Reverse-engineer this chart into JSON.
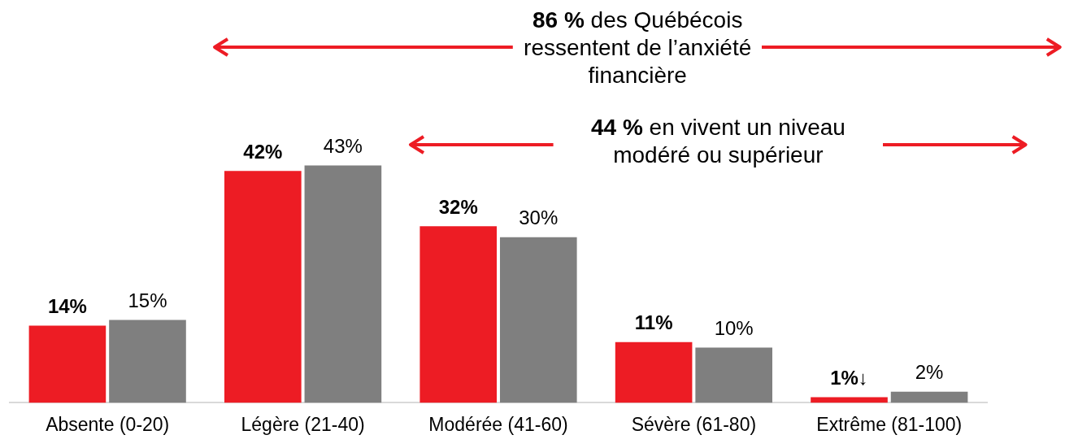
{
  "chart_data": {
    "type": "bar",
    "categories": [
      "Absente (0-20)",
      "Légère (21-40)",
      "Modérée (41-60)",
      "Sévère (61-80)",
      "Extrême (81-100)"
    ],
    "series": [
      {
        "color": "#ed1c24",
        "values": [
          14,
          42,
          32,
          11,
          1
        ],
        "value_labels": [
          "14%",
          "42%",
          "32%",
          "11%",
          "1%↓"
        ]
      },
      {
        "color": "#7f7f7f",
        "values": [
          15,
          43,
          30,
          10,
          2
        ],
        "value_labels": [
          "15%",
          "43%",
          "30%",
          "10%",
          "2%"
        ]
      }
    ],
    "annotations": [
      "86 % des Québécois ressentent de l’anxiété financière",
      "44 % en vivent un niveau modéré ou supérieur"
    ],
    "grid": false,
    "legend": false
  }
}
